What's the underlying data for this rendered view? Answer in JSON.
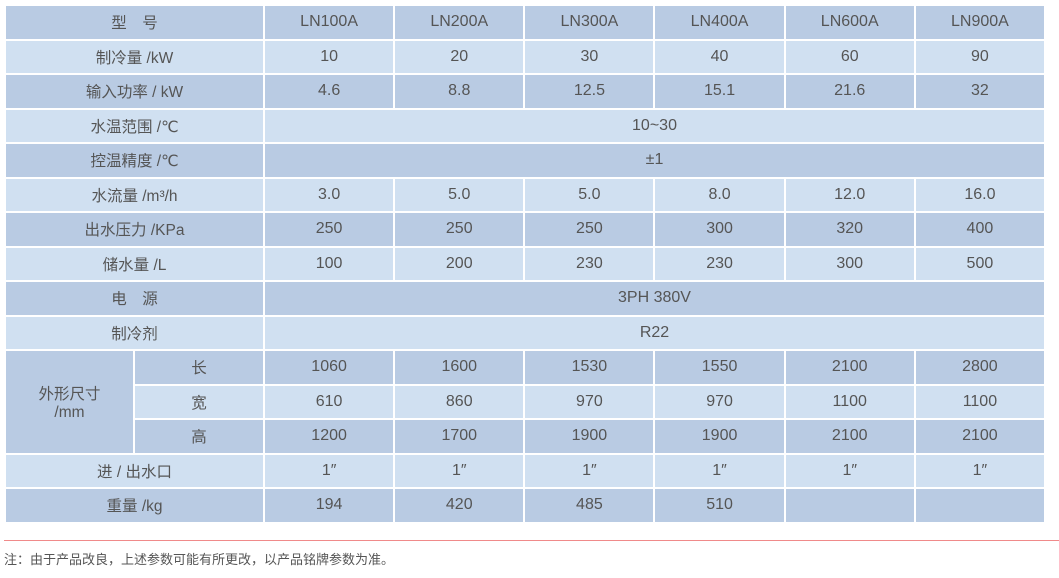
{
  "header": {
    "label": "型　号",
    "models": [
      "LN100A",
      "LN200A",
      "LN300A",
      "LN400A",
      "LN600A",
      "LN900A"
    ]
  },
  "rows": [
    {
      "label": "制冷量 /kW",
      "values": [
        "10",
        "20",
        "30",
        "40",
        "60",
        "90"
      ]
    },
    {
      "label": "输入功率 / kW",
      "values": [
        "4.6",
        "8.8",
        "12.5",
        "15.1",
        "21.6",
        "32"
      ]
    },
    {
      "label": "水温范围 /℃",
      "span": "10~30"
    },
    {
      "label": "控温精度 /℃",
      "span": "±1"
    },
    {
      "label": "水流量 /m³/h",
      "values": [
        "3.0",
        "5.0",
        "5.0",
        "8.0",
        "12.0",
        "16.0"
      ]
    },
    {
      "label": "出水压力 /KPa",
      "values": [
        "250",
        "250",
        "250",
        "300",
        "320",
        "400"
      ]
    },
    {
      "label": "储水量 /L",
      "values": [
        "100",
        "200",
        "230",
        "230",
        "300",
        "500"
      ]
    },
    {
      "label": "电　源",
      "span": "3PH 380V"
    },
    {
      "label": "制冷剂",
      "span": "R22"
    }
  ],
  "dimensions": {
    "label": "外形尺寸\n/mm",
    "rows": [
      {
        "label": "长",
        "values": [
          "1060",
          "1600",
          "1530",
          "1550",
          "2100",
          "2800"
        ]
      },
      {
        "label": "宽",
        "values": [
          "610",
          "860",
          "970",
          "970",
          "1100",
          "1100"
        ]
      },
      {
        "label": "高",
        "values": [
          "1200",
          "1700",
          "1900",
          "1900",
          "2100",
          "2100"
        ]
      }
    ]
  },
  "tail_rows": [
    {
      "label": "进 / 出水口",
      "values": [
        "1″",
        "1″",
        "1″",
        "1″",
        "1″",
        "1″"
      ]
    },
    {
      "label": "重量 /kg",
      "values": [
        "194",
        "420",
        "485",
        "510",
        "",
        ""
      ]
    }
  ],
  "note": "注：由于产品改良，上述参数可能有所更改，以产品铭牌参数为准。",
  "colors": {
    "dark_row": "#b9cbe3",
    "light_row": "#d0e0f1",
    "note_line": "#f08a8a"
  }
}
